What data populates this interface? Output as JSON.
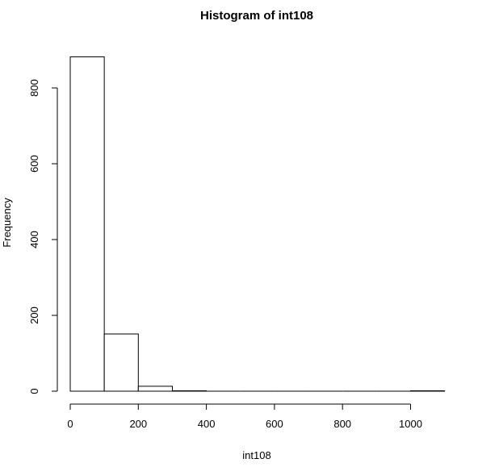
{
  "chart_data": {
    "type": "histogram",
    "title": "Histogram of int108",
    "xlabel": "int108",
    "ylabel": "Frequency",
    "bins": [
      {
        "start": 0,
        "end": 100,
        "count": 882
      },
      {
        "start": 100,
        "end": 200,
        "count": 151
      },
      {
        "start": 200,
        "end": 300,
        "count": 13
      },
      {
        "start": 300,
        "end": 400,
        "count": 1
      },
      {
        "start": 400,
        "end": 500,
        "count": 0
      },
      {
        "start": 500,
        "end": 600,
        "count": 0
      },
      {
        "start": 600,
        "end": 700,
        "count": 0
      },
      {
        "start": 700,
        "end": 800,
        "count": 0
      },
      {
        "start": 800,
        "end": 900,
        "count": 0
      },
      {
        "start": 900,
        "end": 1000,
        "count": 0
      },
      {
        "start": 1000,
        "end": 1100,
        "count": 1
      }
    ],
    "xlim": [
      0,
      1100
    ],
    "ylim": [
      0,
      882
    ],
    "x_ticks": [
      0,
      200,
      400,
      600,
      800,
      1000
    ],
    "y_ticks": [
      0,
      200,
      400,
      600,
      800
    ],
    "grid": false,
    "legend": "none"
  }
}
